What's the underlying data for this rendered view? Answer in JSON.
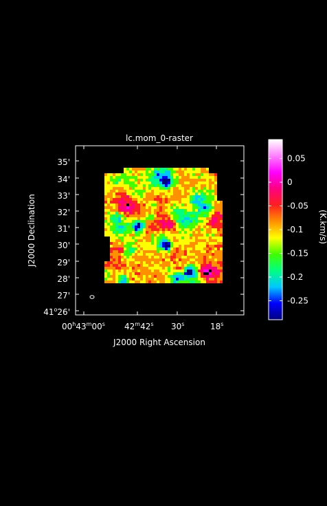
{
  "chart_data": {
    "type": "heatmap",
    "title": "lc.mom_0-raster",
    "xlabel": "J2000 Right Ascension",
    "ylabel": "J2000 Declination",
    "colorbar_label": "(K.km/s)",
    "x_ticks": [
      {
        "h": "00",
        "m": "43",
        "s": "00",
        "label": "00h43m00s"
      },
      {
        "m": "42",
        "s": "42",
        "label": "42m42s"
      },
      {
        "s": "30",
        "label": "30s"
      },
      {
        "s": "18",
        "label": "18s"
      }
    ],
    "y_ticks": [
      {
        "label": "41°26'",
        "deg": "41",
        "arcmin": "26"
      },
      {
        "label": "27'"
      },
      {
        "label": "28'"
      },
      {
        "label": "29'"
      },
      {
        "label": "30'"
      },
      {
        "label": "31'"
      },
      {
        "label": "32'"
      },
      {
        "label": "33'"
      },
      {
        "label": "34'"
      },
      {
        "label": "35'"
      }
    ],
    "colorbar_range": [
      -0.29,
      0.09
    ],
    "colorbar_ticks": [
      "0.05",
      "0",
      "-0.05",
      "-0.1",
      "-0.15",
      "-0.2",
      "-0.25"
    ],
    "colorbar_tick_values": [
      0.05,
      0,
      -0.05,
      -0.1,
      -0.15,
      -0.2,
      -0.25
    ],
    "colormap": [
      "#000080",
      "#0000ff",
      "#00c8ff",
      "#00ff80",
      "#40ff00",
      "#ffff00",
      "#ff9000",
      "#ff2020",
      "#ff0080",
      "#ff00ff",
      "#ff80ff",
      "#ffffff"
    ],
    "beam_marker": "ellipse",
    "grid": false
  }
}
